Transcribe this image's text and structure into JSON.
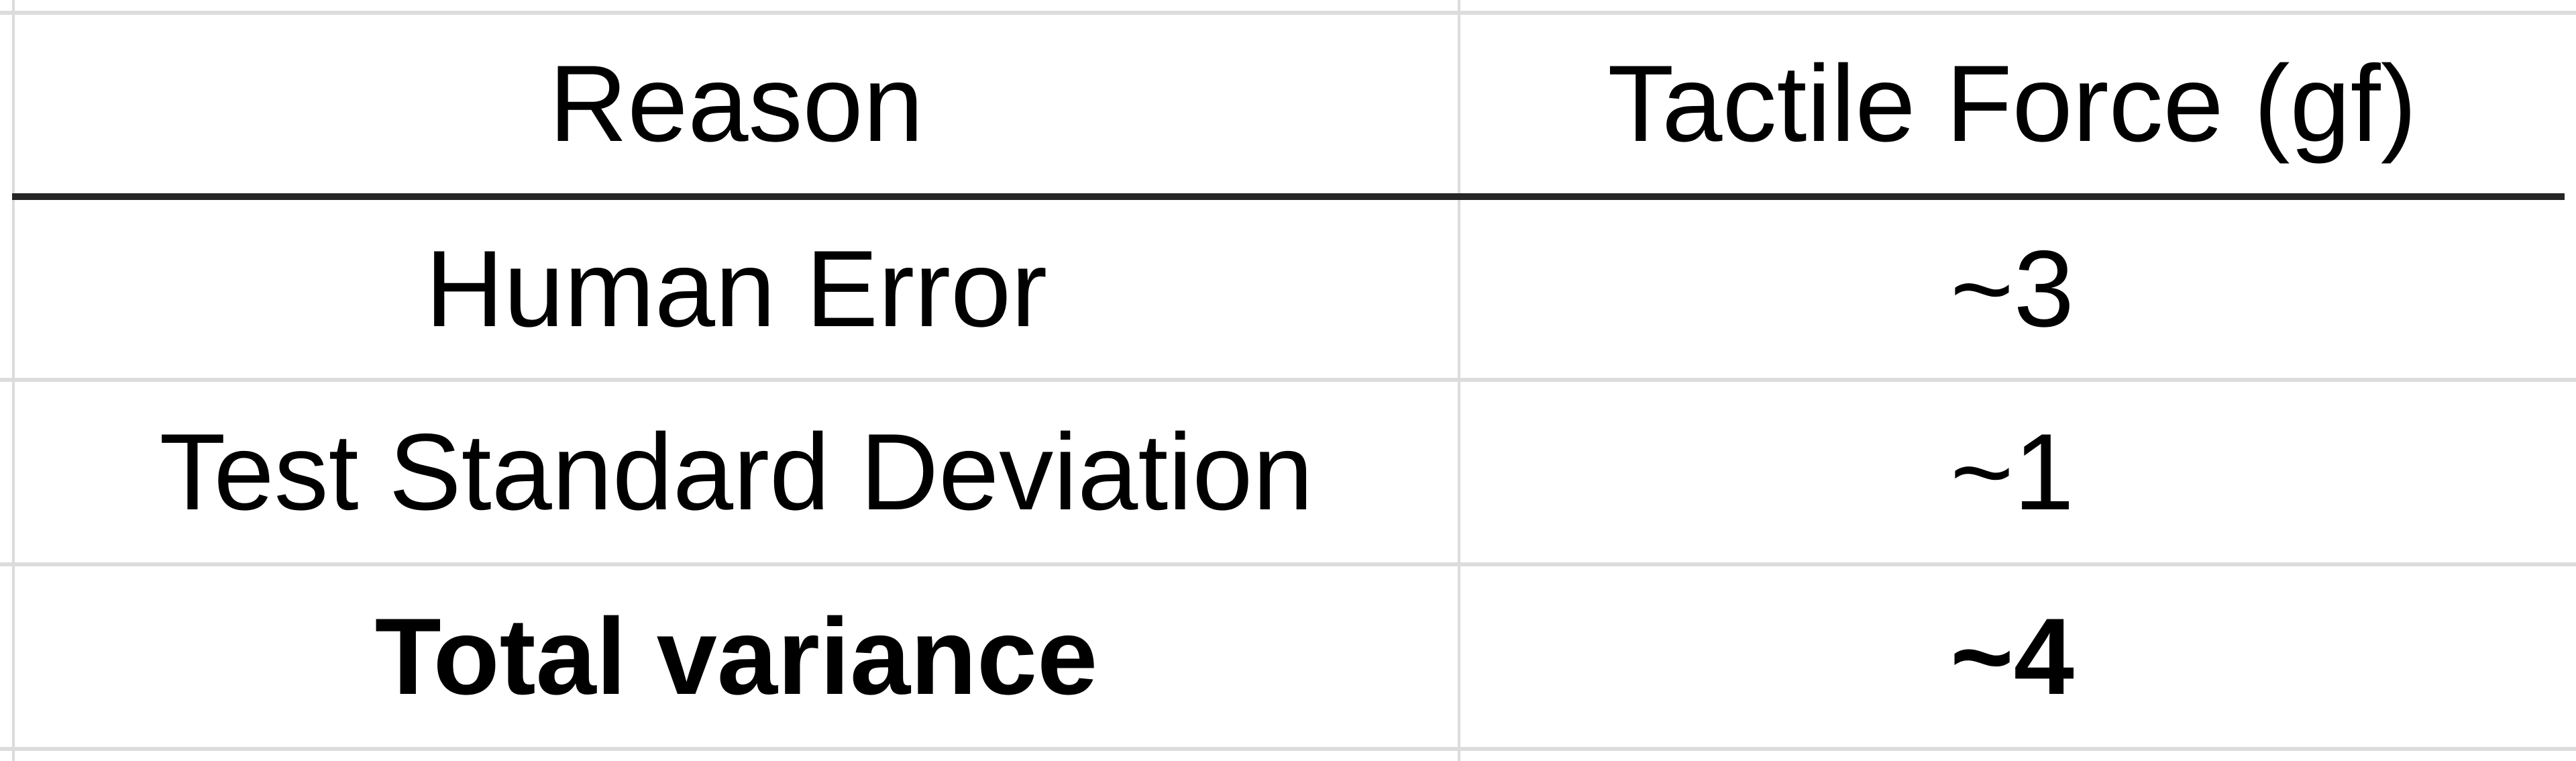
{
  "table": {
    "headers": [
      "Reason",
      "Tactile Force (gf)"
    ],
    "rows": [
      {
        "reason": "Human Error",
        "force": "~3",
        "bold": false
      },
      {
        "reason": "Test Standard Deviation",
        "force": "~1",
        "bold": false
      },
      {
        "reason": "Total variance",
        "force": "~4",
        "bold": true
      }
    ]
  }
}
